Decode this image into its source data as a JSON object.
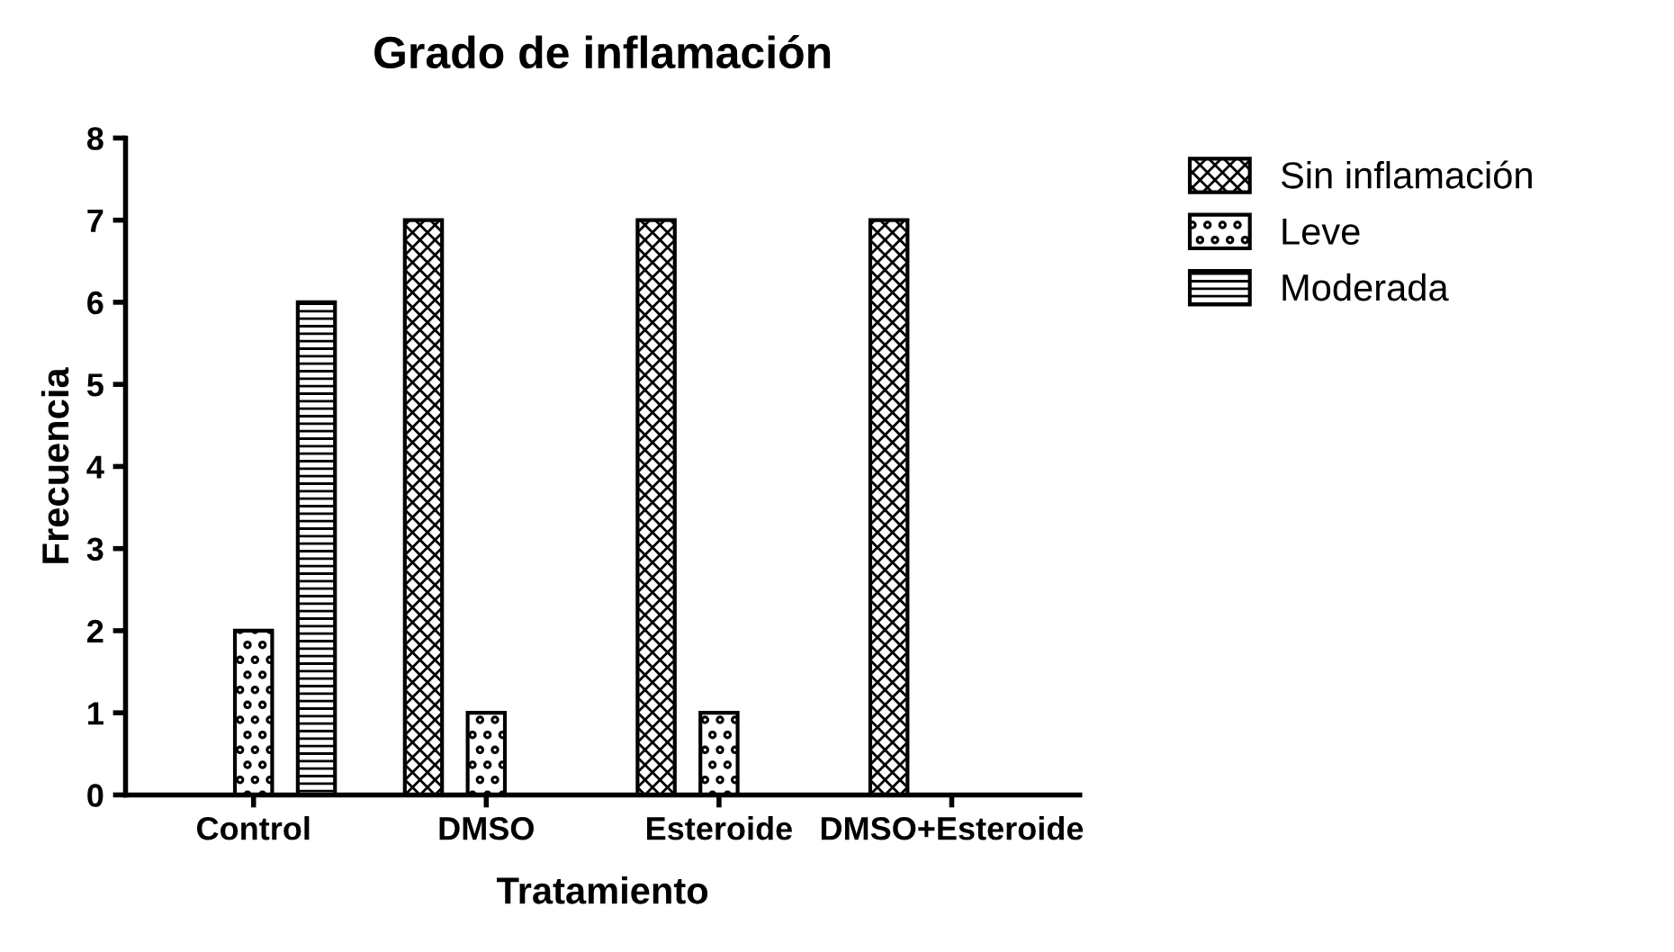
{
  "chart_data": {
    "type": "bar",
    "title": "Grado de inflamación",
    "xlabel": "Tratamiento",
    "ylabel": "Frecuencia",
    "categories": [
      "Control",
      "DMSO",
      "Esteroide",
      "DMSO+Esteroide"
    ],
    "series": [
      {
        "name": "Sin inflamación",
        "color": "#000000",
        "values": [
          0,
          7,
          7,
          7
        ]
      },
      {
        "name": "Leve",
        "color": "#000000",
        "values": [
          2,
          1,
          1,
          0
        ]
      },
      {
        "name": "Moderada",
        "color": "#000000",
        "values": [
          6,
          0,
          0,
          0
        ]
      }
    ],
    "ylim": [
      0,
      8
    ],
    "yticks": [
      0,
      1,
      2,
      3,
      4,
      5,
      6,
      7,
      8
    ],
    "grid": false,
    "legend": "top right"
  }
}
